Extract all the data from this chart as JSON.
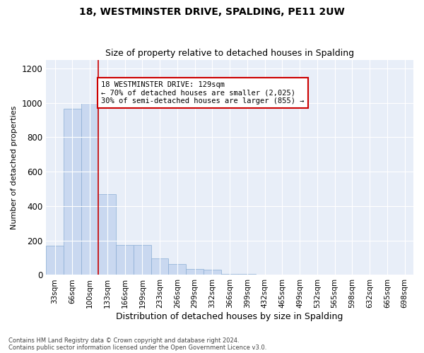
{
  "title": "18, WESTMINSTER DRIVE, SPALDING, PE11 2UW",
  "subtitle": "Size of property relative to detached houses in Spalding",
  "xlabel": "Distribution of detached houses by size in Spalding",
  "ylabel": "Number of detached properties",
  "bar_color": "#c9d8f0",
  "bar_edge_color": "#8aadd4",
  "background_color": "#e8eef8",
  "categories": [
    "33sqm",
    "66sqm",
    "100sqm",
    "133sqm",
    "166sqm",
    "199sqm",
    "233sqm",
    "266sqm",
    "299sqm",
    "332sqm",
    "366sqm",
    "399sqm",
    "432sqm",
    "465sqm",
    "499sqm",
    "532sqm",
    "565sqm",
    "598sqm",
    "632sqm",
    "665sqm",
    "698sqm"
  ],
  "values": [
    170,
    965,
    1000,
    470,
    175,
    175,
    95,
    65,
    35,
    30,
    5,
    5,
    2,
    0,
    0,
    0,
    0,
    0,
    0,
    0,
    0
  ],
  "property_line_color": "#cc0000",
  "annotation_text": "18 WESTMINSTER DRIVE: 129sqm\n← 70% of detached houses are smaller (2,025)\n30% of semi-detached houses are larger (855) →",
  "annotation_box_color": "#ffffff",
  "annotation_box_edge": "#cc0000",
  "footnote": "Contains HM Land Registry data © Crown copyright and database right 2024.\nContains public sector information licensed under the Open Government Licence v3.0.",
  "ylim": [
    0,
    1250
  ],
  "yticks": [
    0,
    200,
    400,
    600,
    800,
    1000,
    1200
  ]
}
